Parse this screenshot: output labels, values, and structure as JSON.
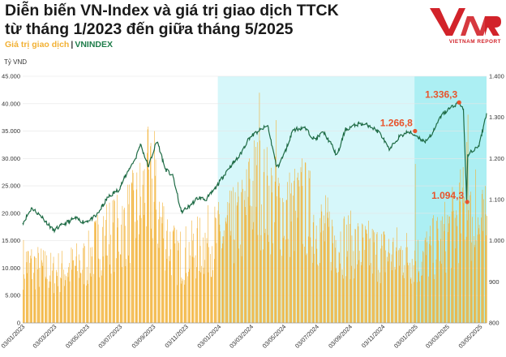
{
  "title": {
    "line1": "Diễn biến VN-Index và giá trị giao dịch TTCK",
    "line2": "từ tháng 1/2023 đến giữa tháng 5/2025"
  },
  "legend": {
    "volume_label": "Giá trị giao dịch",
    "separator": "|",
    "index_label": "VNINDEX"
  },
  "logo": {
    "brand": "VIETNAM REPORT"
  },
  "colors": {
    "bar": "#f2b134",
    "line": "#1e6b45",
    "highlight": "#b4f1f5",
    "callout": "#e8542c",
    "brand": "#d2232a"
  },
  "chart_data": {
    "type": "bar+line",
    "y_left_label": "Tỷ VND",
    "y_left_ticks": [
      "45.000",
      "40.000",
      "35.000",
      "30.000",
      "25.000",
      "20.000",
      "15.000",
      "10.000",
      "5.000",
      "0"
    ],
    "y_right_ticks": [
      "1.400",
      "1.300",
      "1.200",
      "1.100",
      "1.000",
      "900",
      "800"
    ],
    "y_left_range": [
      0,
      45000
    ],
    "y_right_range": [
      800,
      1400
    ],
    "x_range": [
      "2023-01-03",
      "2025-05-15"
    ],
    "x_ticks": [
      "03/01/2023",
      "03/03/2023",
      "03/05/2023",
      "03/07/2023",
      "03/09/2023",
      "03/11/2023",
      "03/01/2024",
      "03/03/2024",
      "03/05/2024",
      "03/07/2024",
      "03/09/2024",
      "03/11/2024",
      "03/01/2025",
      "03/03/2025",
      "03/05/2025"
    ],
    "highlight_ranges": [
      [
        "2024-01-01",
        "2025-05-15"
      ]
    ],
    "highlight_strong_ranges": [
      [
        "2025-01-01",
        "2025-05-15"
      ]
    ],
    "index_series": [
      {
        "x": "2023-01-03",
        "y": 1043
      },
      {
        "x": "2023-01-20",
        "y": 1080
      },
      {
        "x": "2023-02-10",
        "y": 1055
      },
      {
        "x": "2023-03-01",
        "y": 1025
      },
      {
        "x": "2023-03-20",
        "y": 1040
      },
      {
        "x": "2023-04-10",
        "y": 1055
      },
      {
        "x": "2023-04-28",
        "y": 1045
      },
      {
        "x": "2023-05-20",
        "y": 1060
      },
      {
        "x": "2023-06-10",
        "y": 1105
      },
      {
        "x": "2023-07-01",
        "y": 1125
      },
      {
        "x": "2023-07-20",
        "y": 1175
      },
      {
        "x": "2023-08-01",
        "y": 1200
      },
      {
        "x": "2023-08-10",
        "y": 1235
      },
      {
        "x": "2023-08-25",
        "y": 1180
      },
      {
        "x": "2023-09-10",
        "y": 1245
      },
      {
        "x": "2023-09-25",
        "y": 1175
      },
      {
        "x": "2023-10-10",
        "y": 1155
      },
      {
        "x": "2023-10-25",
        "y": 1070
      },
      {
        "x": "2023-11-10",
        "y": 1085
      },
      {
        "x": "2023-11-25",
        "y": 1105
      },
      {
        "x": "2023-12-10",
        "y": 1100
      },
      {
        "x": "2023-12-29",
        "y": 1130
      },
      {
        "x": "2024-01-20",
        "y": 1175
      },
      {
        "x": "2024-02-10",
        "y": 1205
      },
      {
        "x": "2024-02-28",
        "y": 1250
      },
      {
        "x": "2024-03-15",
        "y": 1265
      },
      {
        "x": "2024-04-03",
        "y": 1280
      },
      {
        "x": "2024-04-20",
        "y": 1175
      },
      {
        "x": "2024-05-05",
        "y": 1215
      },
      {
        "x": "2024-05-20",
        "y": 1270
      },
      {
        "x": "2024-06-10",
        "y": 1275
      },
      {
        "x": "2024-06-30",
        "y": 1245
      },
      {
        "x": "2024-07-15",
        "y": 1265
      },
      {
        "x": "2024-07-30",
        "y": 1235
      },
      {
        "x": "2024-08-10",
        "y": 1205
      },
      {
        "x": "2024-08-25",
        "y": 1270
      },
      {
        "x": "2024-09-20",
        "y": 1285
      },
      {
        "x": "2024-10-10",
        "y": 1280
      },
      {
        "x": "2024-10-30",
        "y": 1260
      },
      {
        "x": "2024-11-15",
        "y": 1220
      },
      {
        "x": "2024-12-01",
        "y": 1250
      },
      {
        "x": "2024-12-20",
        "y": 1265
      },
      {
        "x": "2025-01-05",
        "y": 1255
      },
      {
        "x": "2025-01-20",
        "y": 1240
      },
      {
        "x": "2025-02-05",
        "y": 1265
      },
      {
        "x": "2025-02-20",
        "y": 1305
      },
      {
        "x": "2025-03-10",
        "y": 1325
      },
      {
        "x": "2025-03-25",
        "y": 1336
      },
      {
        "x": "2025-04-02",
        "y": 1320
      },
      {
        "x": "2025-04-08",
        "y": 1094
      },
      {
        "x": "2025-04-10",
        "y": 1210
      },
      {
        "x": "2025-04-20",
        "y": 1220
      },
      {
        "x": "2025-05-01",
        "y": 1230
      },
      {
        "x": "2025-05-15",
        "y": 1310
      }
    ],
    "annotations": [
      {
        "label": "1.266,8",
        "x": "2025-01-02",
        "y": 1266.8
      },
      {
        "label": "1.336,3",
        "x": "2025-03-25",
        "y": 1336.3
      },
      {
        "label": "1.094,3",
        "x": "2025-04-09",
        "y": 1094.3
      }
    ],
    "volume_series": [
      {
        "x": "2023-01-03",
        "y": 11000
      },
      {
        "x": "2023-02-01",
        "y": 10000
      },
      {
        "x": "2023-03-01",
        "y": 9000
      },
      {
        "x": "2023-04-01",
        "y": 10000
      },
      {
        "x": "2023-05-01",
        "y": 11000
      },
      {
        "x": "2023-06-01",
        "y": 16000
      },
      {
        "x": "2023-07-01",
        "y": 16500
      },
      {
        "x": "2023-08-01",
        "y": 20000
      },
      {
        "x": "2023-08-25",
        "y": 25000
      },
      {
        "x": "2023-09-15",
        "y": 19000
      },
      {
        "x": "2023-10-15",
        "y": 12000
      },
      {
        "x": "2023-11-15",
        "y": 13000
      },
      {
        "x": "2023-12-15",
        "y": 15000
      },
      {
        "x": "2024-01-15",
        "y": 16000
      },
      {
        "x": "2024-02-15",
        "y": 19000
      },
      {
        "x": "2024-03-10",
        "y": 25000
      },
      {
        "x": "2024-04-10",
        "y": 22000
      },
      {
        "x": "2024-05-10",
        "y": 20000
      },
      {
        "x": "2024-06-10",
        "y": 21000
      },
      {
        "x": "2024-07-10",
        "y": 17000
      },
      {
        "x": "2024-08-10",
        "y": 15000
      },
      {
        "x": "2024-09-10",
        "y": 14000
      },
      {
        "x": "2024-10-10",
        "y": 13000
      },
      {
        "x": "2024-11-10",
        "y": 12500
      },
      {
        "x": "2024-12-10",
        "y": 12500
      },
      {
        "x": "2025-01-10",
        "y": 11500
      },
      {
        "x": "2025-02-10",
        "y": 14000
      },
      {
        "x": "2025-03-10",
        "y": 17000
      },
      {
        "x": "2025-04-05",
        "y": 21000
      },
      {
        "x": "2025-04-20",
        "y": 17000
      },
      {
        "x": "2025-05-15",
        "y": 17500
      }
    ],
    "volume_peaks": [
      {
        "x": "2023-08-22",
        "y": 31000
      },
      {
        "x": "2023-09-05",
        "y": 35000
      },
      {
        "x": "2024-02-28",
        "y": 30000
      },
      {
        "x": "2024-03-18",
        "y": 42000
      },
      {
        "x": "2024-04-18",
        "y": 37000
      },
      {
        "x": "2024-06-05",
        "y": 30000
      },
      {
        "x": "2025-01-02",
        "y": 29000
      },
      {
        "x": "2025-04-08",
        "y": 33000
      },
      {
        "x": "2025-04-10",
        "y": 38000
      },
      {
        "x": "2025-04-24",
        "y": 28000
      }
    ]
  }
}
